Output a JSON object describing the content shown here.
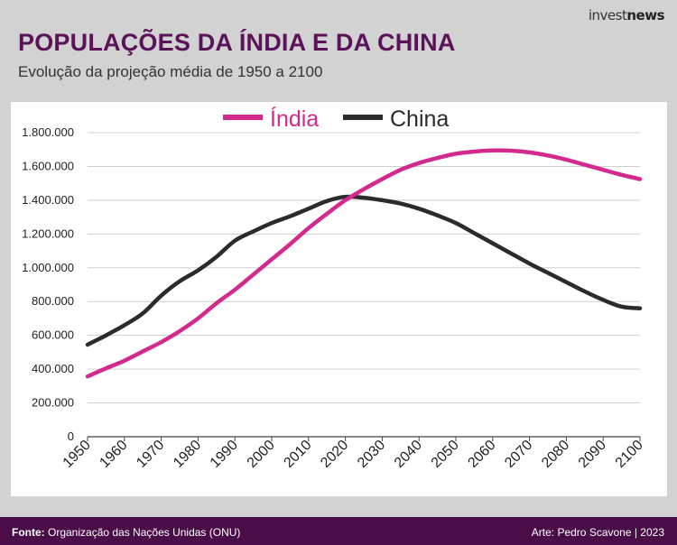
{
  "brand": {
    "part1": "invest",
    "part2": "news"
  },
  "header": {
    "title": "POPULAÇÕES DA ÍNDIA E DA CHINA",
    "subtitle": "Evolução da projeção média de 1950 a 2100"
  },
  "footer": {
    "source_label": "Fonte:",
    "source_text": "Organização das Nações Unidas (ONU)",
    "credit": "Arte: Pedro Scavone | 2023"
  },
  "colors": {
    "india": "#d42a8e",
    "china": "#2b2b2b",
    "title": "#5a1259",
    "footer_bg": "#4a0d47"
  },
  "chart_data": {
    "type": "line",
    "title": "POPULAÇÕES DA ÍNDIA E DA CHINA",
    "subtitle": "Evolução da projeção média de 1950 a 2100",
    "xlabel": "",
    "ylabel": "",
    "xlim": [
      1950,
      2100
    ],
    "ylim": [
      0,
      1800000
    ],
    "x_ticks": [
      1950,
      1960,
      1970,
      1980,
      1990,
      2000,
      2010,
      2020,
      2030,
      2040,
      2050,
      2060,
      2070,
      2080,
      2090,
      2100
    ],
    "y_ticks": [
      0,
      200000,
      400000,
      600000,
      800000,
      1000000,
      1200000,
      1400000,
      1600000,
      1800000
    ],
    "y_tick_labels": [
      "0",
      "200.000",
      "400.000",
      "600.000",
      "800.000",
      "1.000.000",
      "1.200.000",
      "1.400.000",
      "1.600.000",
      "1.800.000"
    ],
    "grid": true,
    "legend": "top-center",
    "x": [
      1950,
      1955,
      1960,
      1965,
      1970,
      1975,
      1980,
      1985,
      1990,
      1995,
      2000,
      2005,
      2010,
      2015,
      2020,
      2025,
      2030,
      2035,
      2040,
      2045,
      2050,
      2055,
      2060,
      2065,
      2070,
      2075,
      2080,
      2085,
      2090,
      2095,
      2100
    ],
    "series": [
      {
        "name": "Índia",
        "color": "#d42a8e",
        "values": [
          357000,
          405000,
          450000,
          505000,
          560000,
          625000,
          700000,
          790000,
          870000,
          960000,
          1050000,
          1140000,
          1235000,
          1320000,
          1400000,
          1465000,
          1525000,
          1580000,
          1620000,
          1650000,
          1675000,
          1688000,
          1695000,
          1693000,
          1683000,
          1665000,
          1640000,
          1610000,
          1580000,
          1550000,
          1525000
        ]
      },
      {
        "name": "China",
        "color": "#2b2b2b",
        "values": [
          545000,
          600000,
          660000,
          730000,
          835000,
          920000,
          985000,
          1065000,
          1160000,
          1215000,
          1265000,
          1305000,
          1350000,
          1395000,
          1420000,
          1415000,
          1400000,
          1380000,
          1350000,
          1310000,
          1265000,
          1205000,
          1145000,
          1085000,
          1025000,
          970000,
          915000,
          860000,
          810000,
          770000,
          760000
        ]
      }
    ]
  }
}
